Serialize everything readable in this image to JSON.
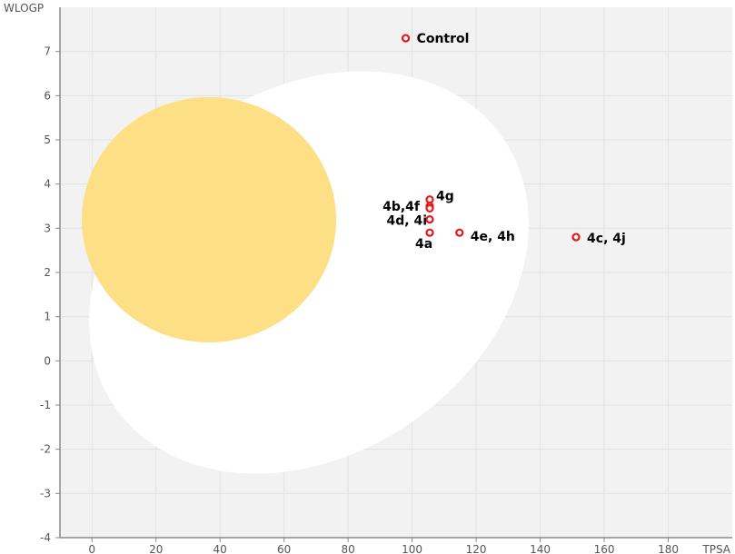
{
  "chart_data": {
    "type": "scatter",
    "xlabel": "TPSA",
    "ylabel": "WLOGP",
    "xlim": [
      -10,
      200
    ],
    "ylim": [
      -4,
      8
    ],
    "x_ticks": [
      0,
      20,
      40,
      60,
      80,
      100,
      120,
      140,
      160,
      180
    ],
    "y_ticks": [
      -4,
      -3,
      -2,
      -1,
      0,
      1,
      2,
      3,
      4,
      5,
      6,
      7
    ],
    "grid": true,
    "points": [
      {
        "x": 98,
        "y": 7.3,
        "label": "Control"
      },
      {
        "x": 105.5,
        "y": 3.65,
        "label": "4g"
      },
      {
        "x": 105.5,
        "y": 3.5,
        "label": "4b,4f"
      },
      {
        "x": 105.5,
        "y": 3.45
      },
      {
        "x": 105.5,
        "y": 3.2,
        "label": "4d, 4i"
      },
      {
        "x": 105.5,
        "y": 2.9,
        "label": "4a"
      },
      {
        "x": 114.8,
        "y": 2.9,
        "label": "4e, 4h"
      },
      {
        "x": 151.2,
        "y": 2.8,
        "label": "4c, 4j"
      }
    ],
    "regions": [
      {
        "name": "white",
        "color": "#ffffff"
      },
      {
        "name": "yolk",
        "color": "#fddf85"
      }
    ],
    "colors": {
      "plot_background": "#f2f2f2",
      "grid": "#e2e2e2",
      "axis": "#8a8a8a",
      "point_stroke": "#e8161b",
      "point_fill": "#ffffff"
    }
  }
}
